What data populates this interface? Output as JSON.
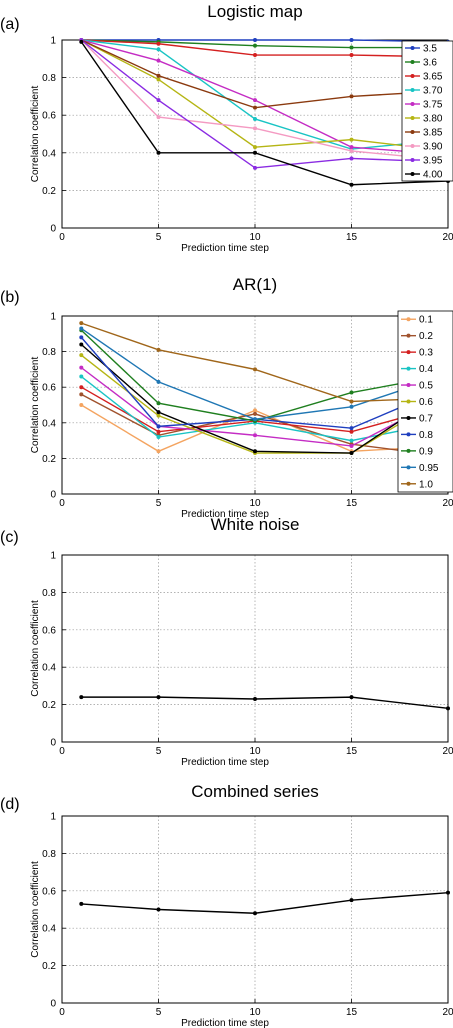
{
  "chart_data": [
    {
      "type": "line",
      "panel_label": "(a)",
      "title": "Logistic map",
      "xlabel": "Prediction time step",
      "ylabel": "Correlation coefficient",
      "x": [
        1,
        5,
        10,
        15,
        20
      ],
      "xticks": [
        0,
        5,
        10,
        15,
        20
      ],
      "yticks": [
        0,
        0.2,
        0.4,
        0.6,
        0.8,
        1
      ],
      "xlim": [
        0,
        20
      ],
      "ylim": [
        0,
        1
      ],
      "grid": true,
      "legend_position": "top-right",
      "series": [
        {
          "name": "3.5",
          "color": "#1f3fbf",
          "values": [
            1.0,
            1.0,
            1.0,
            1.0,
            0.99
          ]
        },
        {
          "name": "3.6",
          "color": "#1f7f1f",
          "values": [
            1.0,
            0.99,
            0.97,
            0.96,
            0.96
          ]
        },
        {
          "name": "3.65",
          "color": "#d42020",
          "values": [
            1.0,
            0.98,
            0.92,
            0.92,
            0.91
          ]
        },
        {
          "name": "3.70",
          "color": "#19c4c4",
          "values": [
            1.0,
            0.95,
            0.58,
            0.42,
            0.47
          ]
        },
        {
          "name": "3.75",
          "color": "#c42cc4",
          "values": [
            1.0,
            0.89,
            0.68,
            0.43,
            0.39
          ]
        },
        {
          "name": "3.80",
          "color": "#b5b514",
          "values": [
            1.0,
            0.79,
            0.43,
            0.47,
            0.41
          ]
        },
        {
          "name": "3.85",
          "color": "#8b3a0f",
          "values": [
            1.0,
            0.81,
            0.64,
            0.7,
            0.73
          ]
        },
        {
          "name": "3.90",
          "color": "#f49ac2",
          "values": [
            1.0,
            0.59,
            0.53,
            0.41,
            0.36
          ]
        },
        {
          "name": "3.95",
          "color": "#8a2be2",
          "values": [
            1.0,
            0.68,
            0.32,
            0.37,
            0.35
          ]
        },
        {
          "name": "4.00",
          "color": "#000000",
          "values": [
            0.99,
            0.4,
            0.4,
            0.23,
            0.25
          ]
        }
      ]
    },
    {
      "type": "line",
      "panel_label": "(b)",
      "title": "AR(1)",
      "xlabel": "Prediction time step",
      "ylabel": "Correlation coefficient",
      "x": [
        1,
        5,
        10,
        15,
        20
      ],
      "xticks": [
        0,
        5,
        10,
        15,
        20
      ],
      "yticks": [
        0,
        0.2,
        0.4,
        0.6,
        0.8,
        1
      ],
      "xlim": [
        0,
        20
      ],
      "ylim": [
        0,
        1
      ],
      "grid": true,
      "legend_position": "top-right",
      "series": [
        {
          "name": "0.1",
          "color": "#f4a460",
          "values": [
            0.5,
            0.24,
            0.47,
            0.24,
            0.27
          ]
        },
        {
          "name": "0.2",
          "color": "#a0522d",
          "values": [
            0.56,
            0.33,
            0.45,
            0.28,
            0.21
          ]
        },
        {
          "name": "0.3",
          "color": "#d42020",
          "values": [
            0.6,
            0.35,
            0.41,
            0.35,
            0.5
          ]
        },
        {
          "name": "0.4",
          "color": "#19c4c4",
          "values": [
            0.66,
            0.32,
            0.4,
            0.3,
            0.41
          ]
        },
        {
          "name": "0.5",
          "color": "#c42cc4",
          "values": [
            0.71,
            0.38,
            0.33,
            0.27,
            0.55
          ]
        },
        {
          "name": "0.6",
          "color": "#b5b514",
          "values": [
            0.78,
            0.44,
            0.23,
            0.23,
            0.56
          ]
        },
        {
          "name": "0.7",
          "color": "#000000",
          "values": [
            0.84,
            0.46,
            0.24,
            0.23,
            0.59
          ]
        },
        {
          "name": "0.8",
          "color": "#1f3fbf",
          "values": [
            0.88,
            0.38,
            0.42,
            0.37,
            0.6
          ]
        },
        {
          "name": "0.9",
          "color": "#1f7f1f",
          "values": [
            0.92,
            0.51,
            0.41,
            0.57,
            0.67
          ]
        },
        {
          "name": "0.95",
          "color": "#1f77b4",
          "values": [
            0.93,
            0.63,
            0.42,
            0.49,
            0.67
          ]
        },
        {
          "name": "1.0",
          "color": "#a0661a",
          "values": [
            0.96,
            0.81,
            0.7,
            0.52,
            0.54
          ]
        }
      ]
    },
    {
      "type": "line",
      "panel_label": "(c)",
      "title": "White noise",
      "xlabel": "Prediction time step",
      "ylabel": "Correlation coefficient",
      "x": [
        1,
        5,
        10,
        15,
        20
      ],
      "xticks": [
        0,
        5,
        10,
        15,
        20
      ],
      "yticks": [
        0,
        0.2,
        0.4,
        0.6,
        0.8,
        1
      ],
      "xlim": [
        0,
        20
      ],
      "ylim": [
        0,
        1
      ],
      "grid": true,
      "series": [
        {
          "color": "#000000",
          "values": [
            0.24,
            0.24,
            0.23,
            0.24,
            0.18
          ]
        }
      ]
    },
    {
      "type": "line",
      "panel_label": "(d)",
      "title": "Combined series",
      "xlabel": "Prediction time step",
      "ylabel": "Correlation coefficient",
      "x": [
        1,
        5,
        10,
        15,
        20
      ],
      "xticks": [
        0,
        5,
        10,
        15,
        20
      ],
      "yticks": [
        0,
        0.2,
        0.4,
        0.6,
        0.8,
        1
      ],
      "xlim": [
        0,
        20
      ],
      "ylim": [
        0,
        1
      ],
      "grid": true,
      "series": [
        {
          "color": "#000000",
          "values": [
            0.53,
            0.5,
            0.48,
            0.55,
            0.59
          ]
        }
      ]
    }
  ]
}
